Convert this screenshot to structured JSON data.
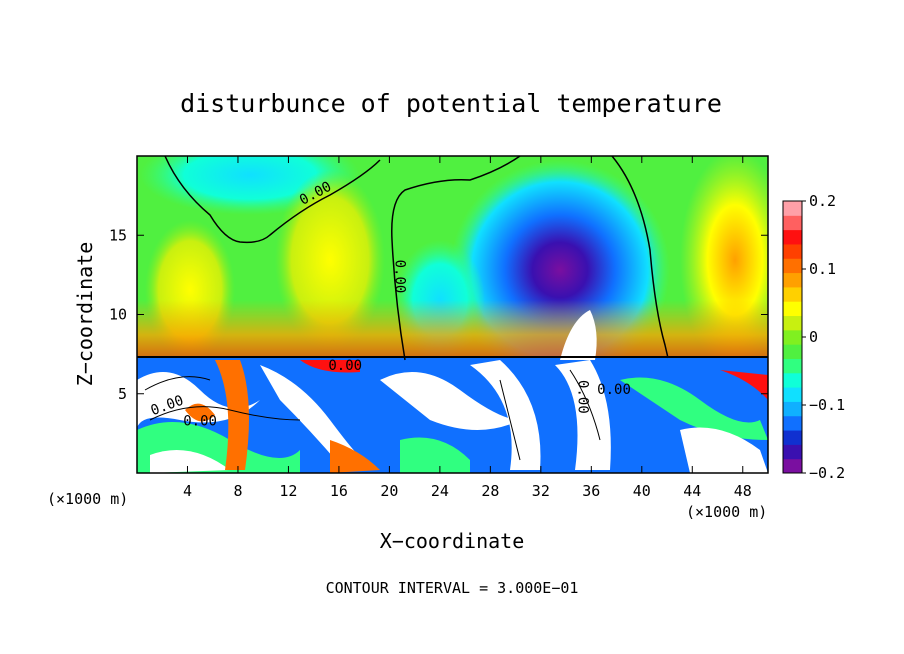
{
  "chart_data": {
    "type": "heatmap",
    "title": "disturbunce of potential temperature",
    "xlabel": "X−coordinate",
    "ylabel": "Z−coordinate",
    "x_unit_left": "(×1000 m)",
    "x_unit_right": "(×1000 m)",
    "xlim": [
      0,
      50
    ],
    "ylim": [
      0,
      20
    ],
    "xticks": [
      4,
      8,
      12,
      16,
      20,
      24,
      28,
      32,
      36,
      40,
      44,
      48
    ],
    "xtick_labels": [
      "4",
      "8",
      "12",
      "16",
      "20",
      "24",
      "28",
      "32",
      "36",
      "40",
      "44",
      "48"
    ],
    "yticks": [
      5,
      10,
      15
    ],
    "ytick_labels": [
      "5",
      "10",
      "15"
    ],
    "colorbar": {
      "min": -0.2,
      "max": 0.2,
      "ticks": [
        0.2,
        0.1,
        0,
        -0.1,
        -0.2
      ],
      "tick_labels": [
        "0.2",
        "0.1",
        "0",
        "−0.1",
        "−0.2"
      ],
      "colors": [
        "#7a0fa0",
        "#3a10b0",
        "#1030d0",
        "#1070ff",
        "#10b0ff",
        "#10e0ff",
        "#10ffd8",
        "#30ff80",
        "#50f040",
        "#80f020",
        "#c8f010",
        "#ffff00",
        "#ffd000",
        "#ffa000",
        "#ff7000",
        "#ff4000",
        "#ff1010",
        "#ff6060",
        "#ffa0a8"
      ]
    },
    "contour_labels": [
      "0.00",
      "0.00",
      "0.00",
      "0.00",
      "0.00",
      "0.00",
      "0.00"
    ],
    "note": "CONTOUR INTERVAL = 3.000E−01"
  }
}
